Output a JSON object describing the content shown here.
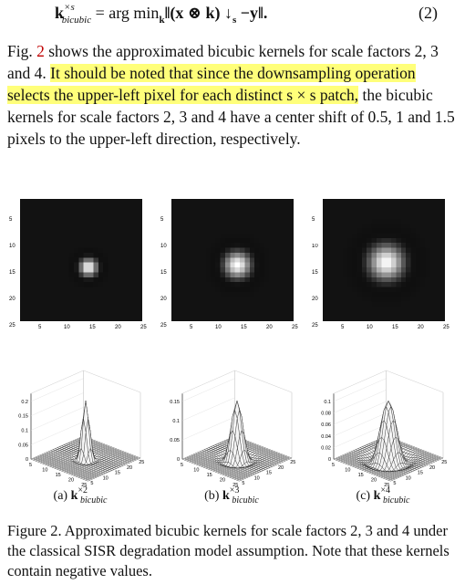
{
  "equation": {
    "k": "k",
    "sup": "×s",
    "sub": "bicubic",
    "rhs": " = arg min",
    "argsub": "k",
    "body": "‖(x ⊗ k) ↓",
    "s": "s",
    "tail": " −y‖.",
    "number": "(2)"
  },
  "paragraph": {
    "prefix": "Fig. ",
    "ref": "2",
    "text1": " shows the approximated bicubic kernels for scale factors 2, 3 and 4. ",
    "highlight": "It should be noted that since the downsampling operation selects the upper-left pixel for each distinct s × s patch,",
    "text2": " the bicubic kernels for scale factors 2, 3 and 4 have a center shift of 0.5, 1 and 1.5 pixels to the upper-left direction, respectively."
  },
  "kernel_images": [
    {
      "scale": 2,
      "yticks": [
        "5",
        "10",
        "15",
        "20",
        "25"
      ],
      "xticks": [
        "5",
        "10",
        "15",
        "20",
        "25"
      ]
    },
    {
      "scale": 3,
      "yticks": [
        "5",
        "10",
        "15",
        "20",
        "25"
      ],
      "xticks": [
        "5",
        "10",
        "15",
        "20",
        "25"
      ]
    },
    {
      "scale": 4,
      "yticks": [
        "5",
        "10",
        "15",
        "20",
        "25"
      ],
      "xticks": [
        "5",
        "10",
        "15",
        "20",
        "25"
      ]
    }
  ],
  "surface_plots": [
    {
      "scale": 2,
      "zticks": [
        "0.2",
        "0.15",
        "0.1",
        "0.05",
        "0"
      ],
      "label_sup": "×2",
      "label_sub": "bicubic",
      "label_prefix": "(a) "
    },
    {
      "scale": 3,
      "zticks": [
        "0.15",
        "0.1",
        "0.05",
        "0"
      ],
      "label_sup": "×3",
      "label_sub": "bicubic",
      "label_prefix": "(b) "
    },
    {
      "scale": 4,
      "zticks": [
        "0.1",
        "0.08",
        "0.06",
        "0.04",
        "0.02",
        "0"
      ],
      "label_sup": "×4",
      "label_sub": "bicubic",
      "label_prefix": "(c) "
    }
  ],
  "surface_axis_ticks": {
    "left": [
      "5",
      "10",
      "15",
      "20",
      "25"
    ],
    "right": [
      "5",
      "10",
      "15",
      "20",
      "25"
    ]
  },
  "caption": "Figure 2. Approximated bicubic kernels for scale factors 2, 3 and 4 under the classical SISR degradation model assumption. Note that these kernels contain negative values."
}
